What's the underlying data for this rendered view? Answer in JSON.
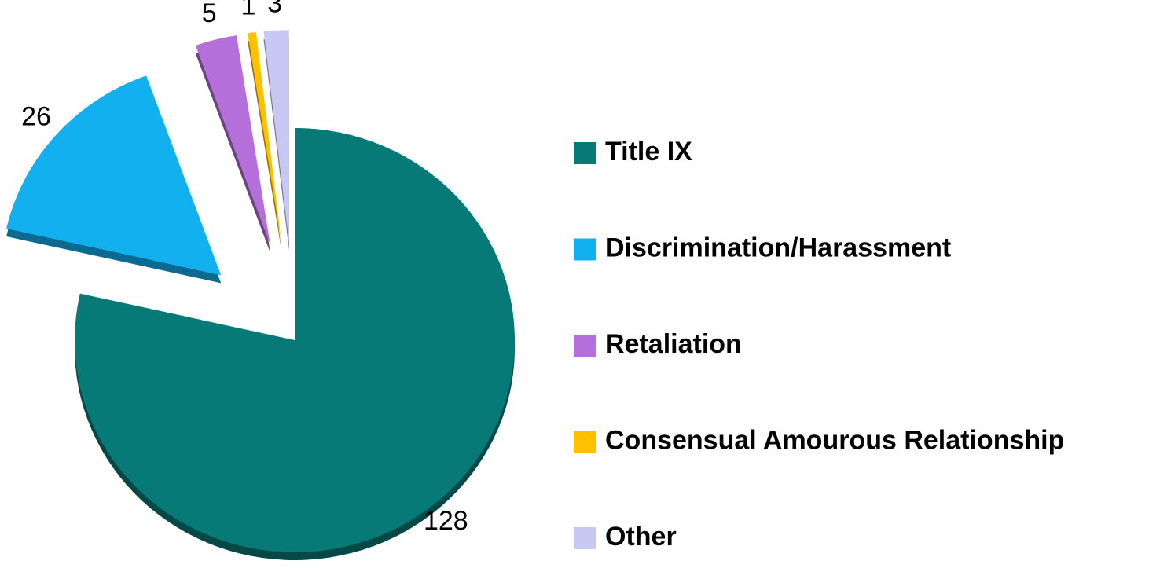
{
  "chart_data": {
    "type": "pie",
    "categories": [
      "Title IX",
      "Discrimination/Harassment",
      "Retaliation",
      "Consensual Amourous Relationship",
      "Other"
    ],
    "values": [
      128,
      26,
      5,
      1,
      3
    ],
    "colors": [
      "#077a78",
      "#13b0ef",
      "#b46fdb",
      "#ffc000",
      "#c8c8f5"
    ],
    "legend": "right"
  }
}
